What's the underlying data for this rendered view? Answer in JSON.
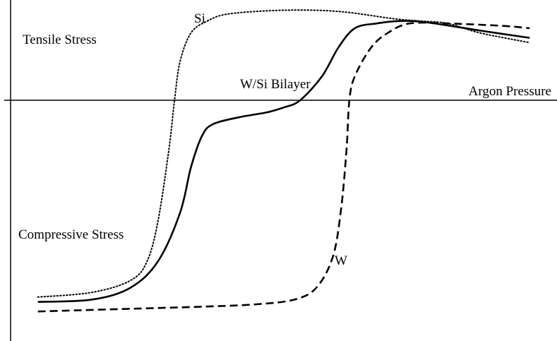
{
  "chart_data": {
    "type": "line",
    "title": "",
    "xlabel": "Argon Pressure",
    "ylabel_top": "Tensile Stress",
    "ylabel_bottom": "Compressive Stress",
    "xlim": [
      0,
      100
    ],
    "ylim": [
      -100,
      40
    ],
    "grid": false,
    "legend": "none",
    "series": [
      {
        "name": "Si",
        "style": "dotted",
        "color": "#000000",
        "points": [
          [
            5,
            -82
          ],
          [
            15,
            -80
          ],
          [
            22,
            -75
          ],
          [
            25,
            -67
          ],
          [
            27,
            -50
          ],
          [
            29,
            -20
          ],
          [
            30,
            0
          ],
          [
            31,
            16
          ],
          [
            33,
            28
          ],
          [
            36,
            33
          ],
          [
            40,
            36
          ],
          [
            50,
            37.5
          ],
          [
            60,
            37
          ],
          [
            70,
            34
          ],
          [
            75,
            33
          ],
          [
            80,
            32
          ],
          [
            86,
            28
          ],
          [
            95,
            24
          ]
        ]
      },
      {
        "name": "W/Si Bilayer",
        "style": "solid",
        "color": "#000000",
        "points": [
          [
            5,
            -84
          ],
          [
            15,
            -83
          ],
          [
            22,
            -78
          ],
          [
            27,
            -67
          ],
          [
            31,
            -47
          ],
          [
            33,
            -28
          ],
          [
            35,
            -15
          ],
          [
            37,
            -10
          ],
          [
            42,
            -7
          ],
          [
            47,
            -5
          ],
          [
            50,
            -3
          ],
          [
            53,
            0
          ],
          [
            57,
            10
          ],
          [
            60,
            22
          ],
          [
            63,
            30
          ],
          [
            67,
            32
          ],
          [
            71,
            33
          ],
          [
            76,
            32.5
          ],
          [
            86,
            29
          ],
          [
            95,
            26
          ]
        ]
      },
      {
        "name": "W",
        "style": "dashed",
        "color": "#000000",
        "points": [
          [
            5,
            -88
          ],
          [
            20,
            -87
          ],
          [
            35,
            -86
          ],
          [
            45,
            -85
          ],
          [
            52,
            -83
          ],
          [
            56,
            -78
          ],
          [
            59,
            -65
          ],
          [
            60.5,
            -45
          ],
          [
            61.5,
            -20
          ],
          [
            62,
            0
          ],
          [
            63,
            10
          ],
          [
            66,
            22
          ],
          [
            69,
            28
          ],
          [
            73,
            32
          ],
          [
            80,
            32
          ],
          [
            90,
            31
          ],
          [
            95,
            30
          ]
        ]
      }
    ]
  }
}
